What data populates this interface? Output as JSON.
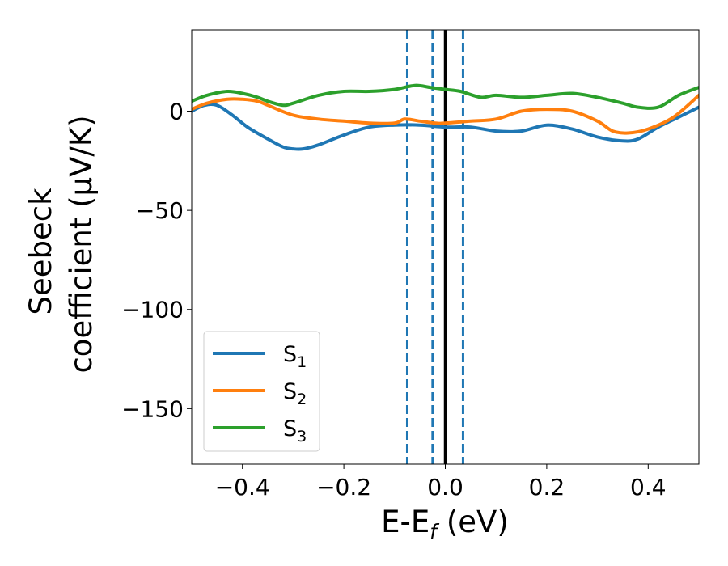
{
  "chart_data": {
    "type": "line",
    "xlabel": {
      "main": "E-E",
      "sub": "f",
      "unit": " (eV)"
    },
    "ylabel": {
      "line1": "Seebeck",
      "line2": "coefficient  (μV/K)"
    },
    "xlim": [
      -0.5,
      0.5
    ],
    "ylim": [
      -178,
      41
    ],
    "xticks": [
      -0.4,
      -0.2,
      0.0,
      0.2,
      0.4
    ],
    "xtick_labels": [
      "−0.4",
      "−0.2",
      "0.0",
      "0.2",
      "0.4"
    ],
    "yticks": [
      0,
      -50,
      -100,
      -150
    ],
    "ytick_labels": [
      "0",
      "−50",
      "−100",
      "−150"
    ],
    "grid": false,
    "legend_position": "lower-left",
    "vlines": [
      {
        "x": -0.075,
        "style": "dashed",
        "color": "#1f77b4"
      },
      {
        "x": -0.025,
        "style": "dashed",
        "color": "#1f77b4"
      },
      {
        "x": 0.035,
        "style": "dashed",
        "color": "#1f77b4"
      },
      {
        "x": 0.0,
        "style": "solid",
        "color": "#000000"
      }
    ],
    "series": [
      {
        "name": "S",
        "sub": "1",
        "color": "#1f77b4",
        "x": [
          -0.5,
          -0.475,
          -0.45,
          -0.42,
          -0.39,
          -0.35,
          -0.32,
          -0.3,
          -0.28,
          -0.25,
          -0.2,
          -0.15,
          -0.1,
          -0.05,
          0.0,
          0.05,
          0.1,
          0.15,
          0.2,
          0.25,
          0.3,
          0.35,
          0.38,
          0.42,
          0.46,
          0.5
        ],
        "y": [
          0,
          3,
          3,
          -2,
          -8,
          -14,
          -18,
          -19,
          -19,
          -17,
          -12,
          -8,
          -7,
          -7,
          -8,
          -8,
          -10,
          -10,
          -7,
          -9,
          -13,
          -15,
          -14,
          -8,
          -3,
          2
        ]
      },
      {
        "name": "S",
        "sub": "2",
        "color": "#ff7f0e",
        "x": [
          -0.5,
          -0.47,
          -0.43,
          -0.4,
          -0.37,
          -0.35,
          -0.3,
          -0.25,
          -0.2,
          -0.15,
          -0.1,
          -0.08,
          -0.05,
          -0.02,
          0.0,
          0.05,
          0.1,
          0.15,
          0.2,
          0.25,
          0.3,
          0.33,
          0.36,
          0.4,
          0.45,
          0.5
        ],
        "y": [
          1,
          4,
          6,
          6,
          5,
          3,
          -2,
          -4,
          -5,
          -6,
          -6,
          -4,
          -5,
          -6,
          -6,
          -5,
          -4,
          0,
          1,
          0,
          -5,
          -10,
          -11,
          -9,
          -3,
          8
        ]
      },
      {
        "name": "S",
        "sub": "3",
        "color": "#2ca02c",
        "x": [
          -0.5,
          -0.47,
          -0.43,
          -0.4,
          -0.37,
          -0.35,
          -0.32,
          -0.3,
          -0.25,
          -0.2,
          -0.15,
          -0.1,
          -0.06,
          -0.03,
          0.0,
          0.03,
          0.07,
          0.1,
          0.15,
          0.2,
          0.25,
          0.3,
          0.35,
          0.38,
          0.42,
          0.46,
          0.5
        ],
        "y": [
          5,
          8,
          10,
          9,
          7,
          5,
          3,
          4,
          8,
          10,
          10,
          11,
          13,
          12,
          11,
          10,
          7,
          8,
          7,
          8,
          9,
          7,
          4,
          2,
          2,
          8,
          12
        ]
      }
    ]
  }
}
